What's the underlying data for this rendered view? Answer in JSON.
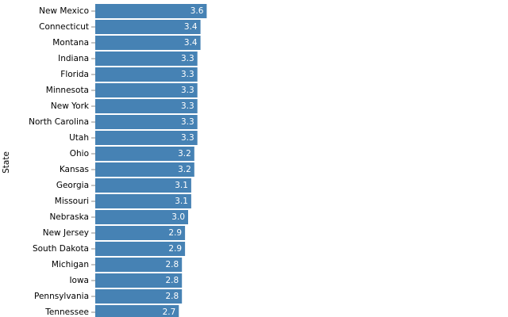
{
  "chart_data": {
    "type": "bar",
    "orientation": "horizontal",
    "y_axis_label": "State",
    "color": "#4682b4",
    "categories": [
      "New Mexico",
      "Connecticut",
      "Montana",
      "Indiana",
      "Florida",
      "Minnesota",
      "New York",
      "North Carolina",
      "Utah",
      "Ohio",
      "Kansas",
      "Georgia",
      "Missouri",
      "Nebraska",
      "New Jersey",
      "South Dakota",
      "Michigan",
      "Iowa",
      "Pennsylvania",
      "Tennessee"
    ],
    "values": [
      3.6,
      3.4,
      3.4,
      3.3,
      3.3,
      3.3,
      3.3,
      3.3,
      3.3,
      3.2,
      3.2,
      3.1,
      3.1,
      3,
      2.9,
      2.9,
      2.8,
      2.8,
      2.8,
      2.7
    ],
    "value_labels": [
      "3.6",
      "3.4",
      "3.4",
      "3.3",
      "3.3",
      "3.3",
      "3.3",
      "3.3",
      "3.3",
      "3.2",
      "3.2",
      "3.1",
      "3.1",
      "3.0",
      "2.9",
      "2.9",
      "2.8",
      "2.8",
      "2.8",
      "2.7"
    ]
  }
}
